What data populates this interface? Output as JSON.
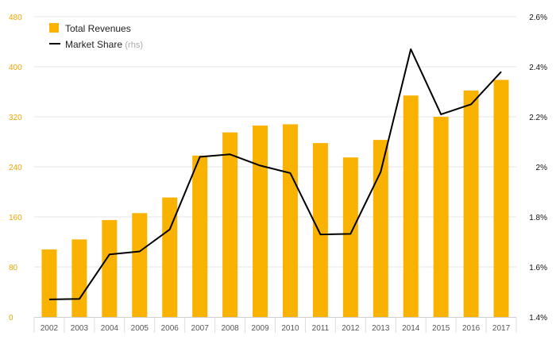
{
  "chart_data": {
    "type": "bar",
    "categories": [
      "2002",
      "2003",
      "2004",
      "2005",
      "2006",
      "2007",
      "2008",
      "2009",
      "2010",
      "2011",
      "2012",
      "2013",
      "2014",
      "2015",
      "2016",
      "2017"
    ],
    "series": [
      {
        "name": "Total Revenues",
        "type": "bar",
        "axis": "left",
        "color": "#f9b200",
        "values": [
          108,
          124,
          155,
          166,
          191,
          258,
          295,
          306,
          308,
          278,
          255,
          283,
          354,
          320,
          362,
          379
        ]
      },
      {
        "name": "Market Share",
        "type": "line",
        "axis": "right",
        "color": "#000000",
        "values": [
          1.47,
          1.472,
          1.65,
          1.662,
          1.75,
          2.04,
          2.05,
          2.005,
          1.975,
          1.73,
          1.732,
          1.98,
          2.47,
          2.21,
          2.25,
          2.38
        ]
      }
    ],
    "y_left": {
      "ticks": [
        "0",
        "80",
        "160",
        "240",
        "320",
        "400",
        "480"
      ],
      "min": 0,
      "max": 480,
      "color": "#f0a500"
    },
    "y_right": {
      "ticks": [
        "1.4%",
        "1.6%",
        "1.8%",
        "2%",
        "2.2%",
        "2.4%",
        "2.6%"
      ],
      "min": 1.4,
      "max": 2.6
    },
    "legend": {
      "position": "top-left",
      "items": [
        {
          "label": "Total Revenues",
          "suffix": ""
        },
        {
          "label": "Market Share",
          "suffix": "(rhs)"
        }
      ]
    },
    "grid": true,
    "title": "",
    "xlabel": "",
    "ylabel": ""
  }
}
